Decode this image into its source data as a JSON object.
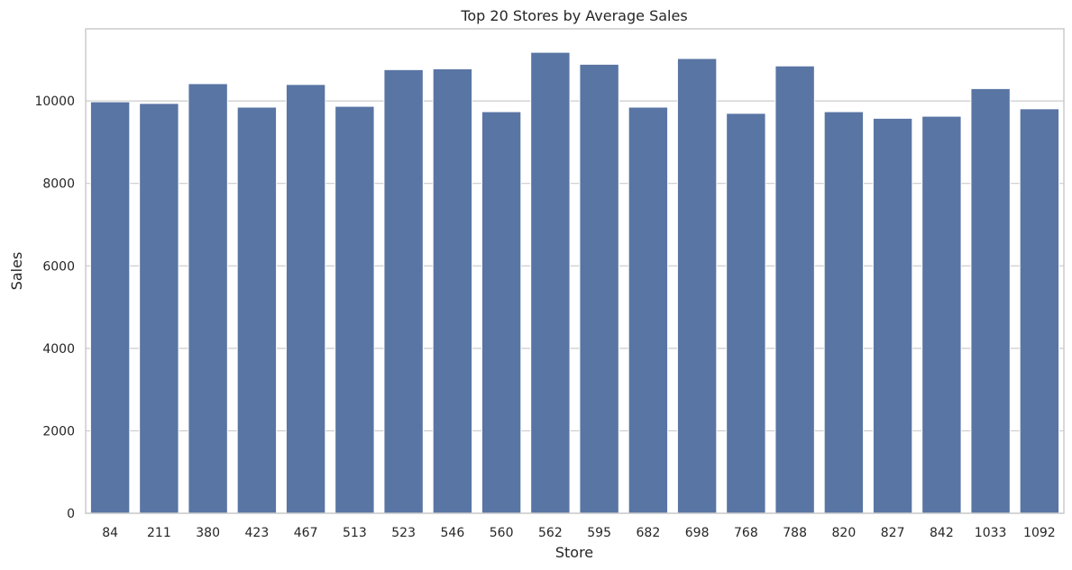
{
  "chart_data": {
    "type": "bar",
    "title": "Top 20 Stores by Average Sales",
    "xlabel": "Store",
    "ylabel": "Sales",
    "categories": [
      "84",
      "211",
      "380",
      "423",
      "467",
      "513",
      "523",
      "546",
      "560",
      "562",
      "595",
      "682",
      "698",
      "768",
      "788",
      "820",
      "827",
      "842",
      "1033",
      "1092"
    ],
    "values": [
      9980,
      9940,
      10420,
      9850,
      10400,
      9870,
      10760,
      10780,
      9740,
      11180,
      10890,
      9850,
      11030,
      9700,
      10850,
      9740,
      9580,
      9630,
      10300,
      9810
    ],
    "ylim": [
      0,
      11750
    ],
    "yticks": [
      0,
      2000,
      4000,
      6000,
      8000,
      10000
    ],
    "grid": true,
    "bar_color": "#5975a4"
  }
}
